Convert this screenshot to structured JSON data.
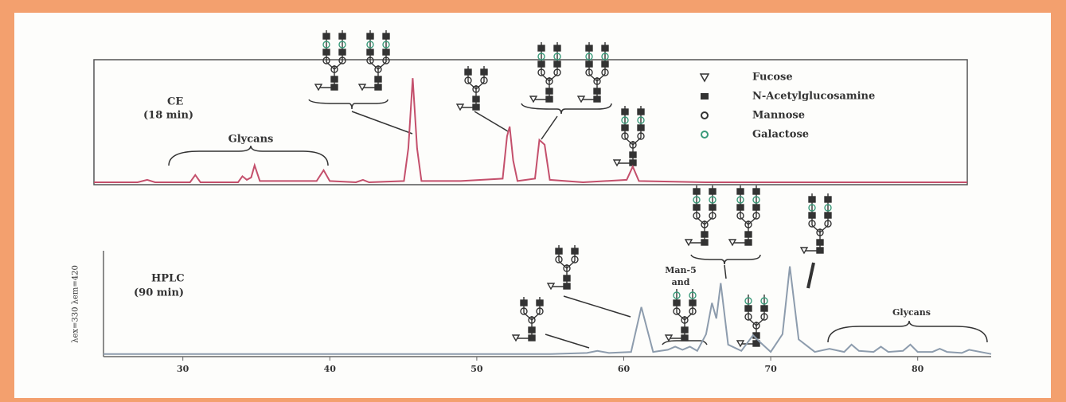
{
  "chart_data": [
    {
      "type": "line",
      "title": "CE",
      "subtitle": "(18 min)",
      "color": "#c4506c",
      "annotations": [
        "Glycans"
      ],
      "legend_items": [
        "Fucose",
        "N-Acetylglucosamine",
        "Mannose",
        "Galactose"
      ],
      "xlim": [
        0,
        100
      ],
      "ylim": [
        0,
        100
      ],
      "x": [
        0,
        5,
        6.1,
        7,
        11,
        11.6,
        12.2,
        16.5,
        17,
        17.5,
        18,
        18.4,
        19,
        25.5,
        26.3,
        27,
        30,
        30.8,
        31.5,
        35.5,
        36,
        36.5,
        37,
        37.5,
        42,
        46.8,
        47.3,
        47.6,
        48,
        48.5,
        50.5,
        51,
        51.6,
        52.2,
        56,
        61,
        61.7,
        62.4,
        70,
        100
      ],
      "values": [
        2,
        2,
        4,
        2,
        2,
        8,
        2,
        2,
        7,
        4,
        6,
        16,
        3,
        3,
        12,
        3,
        2,
        4,
        2,
        3,
        30,
        88,
        30,
        3,
        3,
        5,
        40,
        48,
        20,
        3,
        5,
        37,
        33,
        4,
        2,
        4,
        15,
        3,
        2,
        2
      ]
    },
    {
      "type": "line",
      "title": "HPLC",
      "subtitle": "(90 min)",
      "color": "#8d9cad",
      "y_label": "λex=330 λem=420",
      "annotations": [
        "Man-5",
        "and",
        "Glycans"
      ],
      "xlim": [
        24.6,
        85
      ],
      "ylim": [
        0,
        100
      ],
      "xticks": [
        30,
        40,
        50,
        60,
        70,
        80
      ],
      "x": [
        24.6,
        30,
        40,
        50,
        55,
        57.5,
        58.2,
        59,
        60.5,
        61.2,
        62,
        63,
        63.5,
        64,
        64.5,
        65,
        65.6,
        66,
        66.3,
        66.6,
        67.1,
        68,
        68.8,
        69.3,
        70,
        70.8,
        71.3,
        71.9,
        73,
        74,
        75,
        75.5,
        76,
        77,
        77.5,
        78,
        79,
        79.5,
        80,
        81,
        81.5,
        82,
        83,
        83.5,
        85
      ],
      "values": [
        1,
        1,
        1,
        1,
        1,
        2,
        4,
        2,
        3,
        46,
        3,
        5,
        8,
        5,
        8,
        4,
        20,
        50,
        35,
        69,
        10,
        4,
        19,
        12,
        3,
        20,
        85,
        15,
        3,
        6,
        3,
        10,
        4,
        3,
        8,
        3,
        4,
        10,
        3,
        3,
        6,
        3,
        2,
        5,
        1
      ]
    }
  ]
}
